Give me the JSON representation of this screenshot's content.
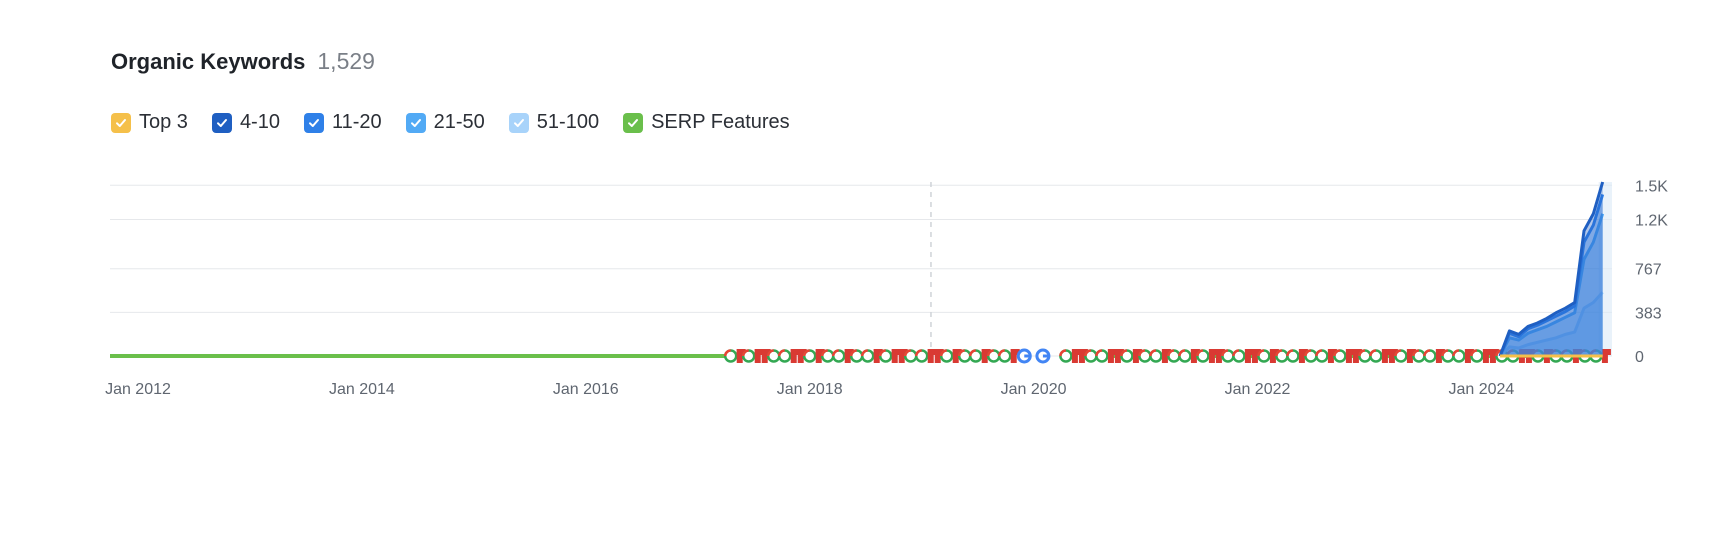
{
  "header": {
    "title": "Organic Keywords",
    "count": "1,529"
  },
  "legend": [
    {
      "label": "Top 3",
      "color": "#f5c04a",
      "icon": "check-icon"
    },
    {
      "label": "4-10",
      "color": "#1f5fc2",
      "icon": "check-icon"
    },
    {
      "label": "11-20",
      "color": "#2f80e8",
      "icon": "check-icon"
    },
    {
      "label": "21-50",
      "color": "#52aaf5",
      "icon": "check-icon"
    },
    {
      "label": "51-100",
      "color": "#a8d3fa",
      "icon": "check-icon"
    },
    {
      "label": "SERP Features",
      "color": "#6abf4b",
      "icon": "check-icon"
    }
  ],
  "chart_data": {
    "type": "area",
    "title": "Organic Keywords",
    "xlabel": "",
    "ylabel": "",
    "x_range": [
      "2011-10",
      "2025-03"
    ],
    "ylim": [
      0,
      1529
    ],
    "yticks": [
      0,
      383,
      767,
      1200,
      1500
    ],
    "ytick_labels": [
      "0",
      "383",
      "767",
      "1.2K",
      "1.5K"
    ],
    "xticks": [
      "2012-01",
      "2014-01",
      "2016-01",
      "2018-01",
      "2020-01",
      "2022-01",
      "2024-01"
    ],
    "xtick_labels": [
      "Jan 2012",
      "Jan 2014",
      "Jan 2016",
      "Jan 2018",
      "Jan 2020",
      "Jan 2022",
      "Jan 2024"
    ],
    "grid": true,
    "legend_position": "top-left",
    "x": [
      "2024-03",
      "2024-04",
      "2024-05",
      "2024-06",
      "2024-07",
      "2024-08",
      "2024-09",
      "2024-10",
      "2024-11",
      "2024-12",
      "2025-01",
      "2025-02"
    ],
    "series": [
      {
        "name": "Top 3",
        "color": "#f5c04a",
        "values": [
          0,
          0,
          0,
          0,
          0,
          0,
          0,
          0,
          0,
          0,
          0,
          0
        ]
      },
      {
        "name": "4-10",
        "color": "#1f5fc2",
        "values": [
          0,
          220,
          190,
          260,
          290,
          330,
          380,
          420,
          470,
          1100,
          1250,
          1529
        ]
      },
      {
        "name": "11-20",
        "color": "#2f80e8",
        "values": [
          0,
          200,
          170,
          240,
          270,
          310,
          350,
          390,
          440,
          1000,
          1150,
          1420
        ]
      },
      {
        "name": "21-50",
        "color": "#52aaf5",
        "values": [
          0,
          160,
          140,
          200,
          230,
          260,
          300,
          340,
          380,
          850,
          1000,
          1250
        ]
      },
      {
        "name": "51-100",
        "color": "#a8d3fa",
        "values": [
          0,
          80,
          70,
          100,
          120,
          140,
          160,
          190,
          210,
          420,
          470,
          560
        ]
      }
    ],
    "serp_features": {
      "color": "#6abf4b",
      "line_value": 0,
      "gaps": [
        [
          "2017-04",
          "2020-06"
        ]
      ]
    },
    "annotations": {
      "marker_start": "2017-04",
      "marker_end": "2025-02",
      "google_updates": [
        "2019-12",
        "2020-02"
      ],
      "dashed_vertical_line": "2019-02"
    }
  }
}
